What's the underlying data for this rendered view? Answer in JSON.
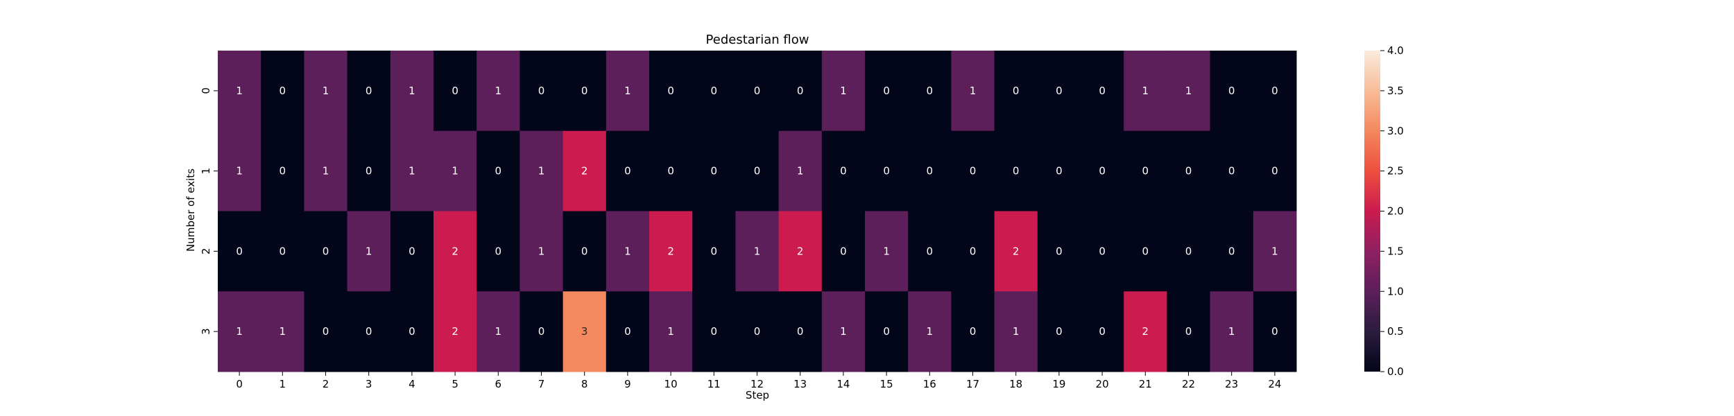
{
  "chart_data": {
    "type": "heatmap",
    "title": "Pedestarian flow",
    "xlabel": "Step",
    "ylabel": "Number of exits",
    "x_categories": [
      "0",
      "1",
      "2",
      "3",
      "4",
      "5",
      "6",
      "7",
      "8",
      "9",
      "10",
      "11",
      "12",
      "13",
      "14",
      "15",
      "16",
      "17",
      "18",
      "19",
      "20",
      "21",
      "22",
      "23",
      "24"
    ],
    "y_categories": [
      "0",
      "1",
      "2",
      "3"
    ],
    "values": [
      [
        1,
        0,
        1,
        0,
        1,
        0,
        1,
        0,
        0,
        1,
        0,
        0,
        0,
        0,
        1,
        0,
        0,
        1,
        0,
        0,
        0,
        1,
        1,
        0,
        0
      ],
      [
        1,
        0,
        1,
        0,
        1,
        1,
        0,
        1,
        2,
        0,
        0,
        0,
        0,
        1,
        0,
        0,
        0,
        0,
        0,
        0,
        0,
        0,
        0,
        0,
        0
      ],
      [
        0,
        0,
        0,
        1,
        0,
        2,
        0,
        1,
        0,
        1,
        2,
        0,
        1,
        2,
        0,
        1,
        0,
        0,
        2,
        0,
        0,
        0,
        0,
        0,
        1
      ],
      [
        1,
        1,
        0,
        0,
        0,
        2,
        1,
        0,
        3,
        0,
        1,
        0,
        0,
        0,
        1,
        0,
        1,
        0,
        1,
        0,
        0,
        2,
        0,
        1,
        0
      ]
    ],
    "colorbar": {
      "range": [
        0,
        4
      ],
      "ticks": [
        "0.0",
        "0.5",
        "1.0",
        "1.5",
        "2.0",
        "2.5",
        "3.0",
        "3.5",
        "4.0"
      ],
      "colormap": "rocket"
    },
    "annotations": true
  }
}
